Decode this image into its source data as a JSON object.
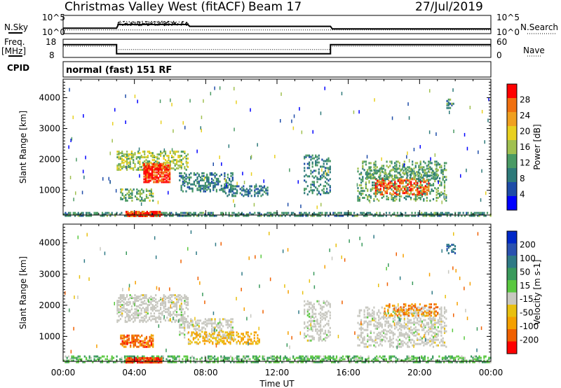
{
  "header": {
    "station": "Christmas Valley West (fitACF)",
    "beam": "Beam 17",
    "date": "27/Jul/2019"
  },
  "side_labels": {
    "nsky": "N.Sky",
    "nsearch": "N.Search",
    "freq_line1": "Freq.",
    "freq_line2": "[MHz]",
    "nave": "Nave",
    "cpid": "CPID",
    "nsky_top": "10^5",
    "nsky_bot": "10^0",
    "nsearch_top": "10^5",
    "nsearch_bot": "10^0",
    "freq_top": "18",
    "freq_bot": "8",
    "nave_top": "60",
    "nave_bot": "0"
  },
  "cpid_text": "normal (fast) 151 RF",
  "colors": {
    "data_black": "#000000",
    "ground_scatter": "#c8c8c0"
  },
  "chart_data": [
    {
      "type": "line",
      "panel": "noise",
      "series": [
        {
          "name": "N.Sky",
          "x": [
            0,
            3,
            3.1,
            7,
            7.1,
            15,
            15.1,
            24
          ],
          "y": [
            1.5,
            1.5,
            2.5,
            2.5,
            2.0,
            2.0,
            1.3,
            1.3
          ]
        },
        {
          "name": "N.Search",
          "x": [
            0,
            24
          ],
          "y": [
            1.0,
            1.0
          ]
        }
      ],
      "ylim": [
        0,
        5
      ]
    },
    {
      "type": "line",
      "panel": "frequency",
      "ylabel": "Freq. [MHz]",
      "series": [
        {
          "name": "Freq",
          "x": [
            0,
            3,
            3,
            15,
            15,
            24
          ],
          "y": [
            15,
            15,
            10,
            10,
            15,
            15
          ]
        },
        {
          "name": "Nave",
          "x": [
            0,
            3,
            3,
            15,
            15,
            24
          ],
          "y": [
            37,
            37,
            26,
            26,
            37,
            37
          ]
        }
      ],
      "ylim": [
        8,
        18
      ],
      "y2lim": [
        0,
        60
      ],
      "y2ticks": [
        "60",
        "0"
      ]
    },
    {
      "type": "heatmap",
      "panel": "power",
      "ylabel": "Slant Range [km]",
      "yticks": [
        "1000",
        "2000",
        "3000",
        "4000"
      ],
      "ylim": [
        200,
        4600
      ],
      "xlim": [
        0,
        24
      ],
      "colorbar": {
        "label": "Power [dB]",
        "ticks": [
          "4",
          "8",
          "12",
          "16",
          "20",
          "24",
          "28"
        ],
        "range": [
          0,
          30
        ]
      },
      "regions": [
        {
          "t0": 0,
          "t1": 24,
          "r0": 210,
          "r1": 320,
          "v": 10,
          "density": 0.55
        },
        {
          "t0": 3.5,
          "t1": 5.5,
          "r0": 200,
          "r1": 360,
          "v": 27,
          "density": 0.8
        },
        {
          "t0": 3.0,
          "t1": 7.0,
          "r0": 1700,
          "r1": 2300,
          "v": 15,
          "density": 0.45
        },
        {
          "t0": 4.5,
          "t1": 6.0,
          "r0": 1300,
          "r1": 1900,
          "v": 27,
          "density": 0.7
        },
        {
          "t0": 3.2,
          "t1": 5.0,
          "r0": 700,
          "r1": 1100,
          "v": 13,
          "density": 0.45
        },
        {
          "t0": 6.5,
          "t1": 9.5,
          "r0": 1000,
          "r1": 1600,
          "v": 9,
          "density": 0.4
        },
        {
          "t0": 9.0,
          "t1": 11.5,
          "r0": 850,
          "r1": 1200,
          "v": 8,
          "density": 0.35
        },
        {
          "t0": 13.5,
          "t1": 15.0,
          "r0": 900,
          "r1": 2200,
          "v": 9,
          "density": 0.3
        },
        {
          "t0": 16.5,
          "t1": 21.5,
          "r0": 700,
          "r1": 2000,
          "v": 12,
          "density": 0.3
        },
        {
          "t0": 17.5,
          "t1": 20.5,
          "r0": 900,
          "r1": 1400,
          "v": 25,
          "density": 0.45
        },
        {
          "t0": 17.0,
          "t1": 21.0,
          "r0": 1400,
          "r1": 1800,
          "v": 12,
          "density": 0.25
        },
        {
          "t0": 21.5,
          "t1": 22.0,
          "r0": 3700,
          "r1": 4000,
          "v": 10,
          "density": 0.4
        }
      ]
    },
    {
      "type": "heatmap",
      "panel": "velocity",
      "ylabel": "Slant Range [km]",
      "xlabel": "Time UT",
      "yticks": [
        "1000",
        "2000",
        "3000",
        "4000"
      ],
      "xticks": [
        "00:00",
        "04:00",
        "08:00",
        "12:00",
        "16:00",
        "20:00",
        "00:00"
      ],
      "ylim": [
        200,
        4600
      ],
      "xlim": [
        0,
        24
      ],
      "colorbar": {
        "label": "Velocity [m s-1]",
        "ticks": [
          "200",
          "100",
          "50",
          "15",
          "-15",
          "-50",
          "-100",
          "-200"
        ]
      },
      "regions": [
        {
          "t0": 0,
          "t1": 24,
          "r0": 210,
          "r1": 420,
          "v": 40,
          "density": 0.5
        },
        {
          "t0": 3.5,
          "t1": 5.5,
          "r0": 200,
          "r1": 380,
          "v": -150,
          "density": 0.8
        },
        {
          "t0": 3.0,
          "t1": 7.0,
          "r0": 1500,
          "r1": 2400,
          "v": 0,
          "density": 0.45
        },
        {
          "t0": 3.2,
          "t1": 5.0,
          "r0": 700,
          "r1": 1100,
          "v": -120,
          "density": 0.6
        },
        {
          "t0": 6.5,
          "t1": 9.5,
          "r0": 1000,
          "r1": 1600,
          "v": 0,
          "density": 0.4
        },
        {
          "t0": 7.0,
          "t1": 11.0,
          "r0": 800,
          "r1": 1200,
          "v": -50,
          "density": 0.4
        },
        {
          "t0": 13.5,
          "t1": 15.0,
          "r0": 900,
          "r1": 2200,
          "v": 0,
          "density": 0.3
        },
        {
          "t0": 16.5,
          "t1": 21.5,
          "r0": 700,
          "r1": 2000,
          "v": 0,
          "density": 0.35
        },
        {
          "t0": 18.0,
          "t1": 21.0,
          "r0": 1700,
          "r1": 2100,
          "v": -90,
          "density": 0.25
        },
        {
          "t0": 21.5,
          "t1": 22.0,
          "r0": 3700,
          "r1": 4000,
          "v": 150,
          "density": 0.4
        }
      ]
    }
  ]
}
